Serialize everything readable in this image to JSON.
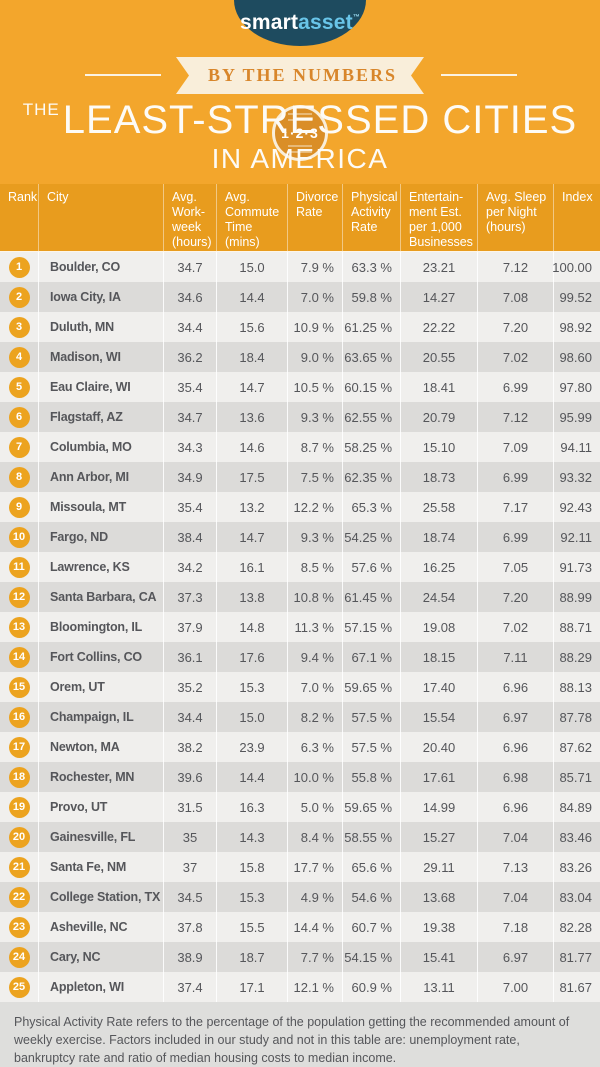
{
  "brand": {
    "logo_part1": "smart",
    "logo_part2": "asset",
    "trademark": "™"
  },
  "ribbon": {
    "left_text": "BY THE",
    "right_text": "NUMBERS",
    "badge_text": "1·2·3"
  },
  "title": {
    "prefix": "THE",
    "main": "LEAST-STRESSED CITIES",
    "sub": "IN AMERICA"
  },
  "colors": {
    "background_yellow": "#F3A62C",
    "table_header_orange": "#E89C1E",
    "rank_circle_orange": "#ECA31F",
    "logo_navy": "#1E4B5F",
    "logo_blue": "#69C5E9",
    "ribbon_cream": "#F9EEDA",
    "ribbon_text_orange": "#D8862B",
    "row_light": "#F0EFED",
    "row_dark": "#DCDBD9",
    "footer_gray": "#DEDEDC",
    "text_gray": "#55565A"
  },
  "table": {
    "display_columns": [
      "Rank",
      "City",
      "Avg.\nWork-\nweek\n(hours)",
      "Avg.\nCommute\nTime\n(mins)",
      "Divorce\nRate",
      "Physical\nActivity\nRate",
      "Entertain-\nment Est.\nper 1,000\nBusinesses",
      "Avg. Sleep\nper Night\n(hours)",
      "Index"
    ]
  },
  "chart_data": {
    "type": "table",
    "title": "The Least-Stressed Cities in America",
    "columns": [
      "Rank",
      "City",
      "Avg. Workweek (hours)",
      "Avg. Commute Time (mins)",
      "Divorce Rate",
      "Physical Activity Rate",
      "Entertainment Est. per 1,000 Businesses",
      "Avg. Sleep per Night (hours)",
      "Index"
    ],
    "rows": [
      [
        "1",
        "Boulder, CO",
        "34.7",
        "15.0",
        "7.9 %",
        "63.3 %",
        "23.21",
        "7.12",
        "100.00"
      ],
      [
        "2",
        "Iowa City, IA",
        "34.6",
        "14.4",
        "7.0 %",
        "59.8 %",
        "14.27",
        "7.08",
        "99.52"
      ],
      [
        "3",
        "Duluth, MN",
        "34.4",
        "15.6",
        "10.9 %",
        "61.25 %",
        "22.22",
        "7.20",
        "98.92"
      ],
      [
        "4",
        "Madison, WI",
        "36.2",
        "18.4",
        "9.0 %",
        "63.65 %",
        "20.55",
        "7.02",
        "98.60"
      ],
      [
        "5",
        "Eau Claire, WI",
        "35.4",
        "14.7",
        "10.5 %",
        "60.15 %",
        "18.41",
        "6.99",
        "97.80"
      ],
      [
        "6",
        "Flagstaff, AZ",
        "34.7",
        "13.6",
        "9.3 %",
        "62.55 %",
        "20.79",
        "7.12",
        "95.99"
      ],
      [
        "7",
        "Columbia, MO",
        "34.3",
        "14.6",
        "8.7 %",
        "58.25 %",
        "15.10",
        "7.09",
        "94.11"
      ],
      [
        "8",
        "Ann Arbor, MI",
        "34.9",
        "17.5",
        "7.5 %",
        "62.35 %",
        "18.73",
        "6.99",
        "93.32"
      ],
      [
        "9",
        "Missoula, MT",
        "35.4",
        "13.2",
        "12.2 %",
        "65.3 %",
        "25.58",
        "7.17",
        "92.43"
      ],
      [
        "10",
        "Fargo, ND",
        "38.4",
        "14.7",
        "9.3 %",
        "54.25 %",
        "18.74",
        "6.99",
        "92.11"
      ],
      [
        "11",
        "Lawrence, KS",
        "34.2",
        "16.1",
        "8.5 %",
        "57.6 %",
        "16.25",
        "7.05",
        "91.73"
      ],
      [
        "12",
        "Santa Barbara, CA",
        "37.3",
        "13.8",
        "10.8 %",
        "61.45 %",
        "24.54",
        "7.20",
        "88.99"
      ],
      [
        "13",
        "Bloomington, IL",
        "37.9",
        "14.8",
        "11.3 %",
        "57.15 %",
        "19.08",
        "7.02",
        "88.71"
      ],
      [
        "14",
        "Fort Collins, CO",
        "36.1",
        "17.6",
        "9.4 %",
        "67.1 %",
        "18.15",
        "7.11",
        "88.29"
      ],
      [
        "15",
        "Orem, UT",
        "35.2",
        "15.3",
        "7.0 %",
        "59.65 %",
        "17.40",
        "6.96",
        "88.13"
      ],
      [
        "16",
        "Champaign, IL",
        "34.4",
        "15.0",
        "8.2 %",
        "57.5 %",
        "15.54",
        "6.97",
        "87.78"
      ],
      [
        "17",
        "Newton, MA",
        "38.2",
        "23.9",
        "6.3 %",
        "57.5 %",
        "20.40",
        "6.96",
        "87.62"
      ],
      [
        "18",
        "Rochester, MN",
        "39.6",
        "14.4",
        "10.0 %",
        "55.8 %",
        "17.61",
        "6.98",
        "85.71"
      ],
      [
        "19",
        "Provo, UT",
        "31.5",
        "16.3",
        "5.0 %",
        "59.65 %",
        "14.99",
        "6.96",
        "84.89"
      ],
      [
        "20",
        "Gainesville, FL",
        "35",
        "14.3",
        "8.4 %",
        "58.55 %",
        "15.27",
        "7.04",
        "83.46"
      ],
      [
        "21",
        "Santa Fe, NM",
        "37",
        "15.8",
        "17.7 %",
        "65.6 %",
        "29.11",
        "7.13",
        "83.26"
      ],
      [
        "22",
        "College Station, TX",
        "34.5",
        "15.3",
        "4.9 %",
        "54.6 %",
        "13.68",
        "7.04",
        "83.04"
      ],
      [
        "23",
        "Asheville, NC",
        "37.8",
        "15.5",
        "14.4 %",
        "60.7 %",
        "19.38",
        "7.18",
        "82.28"
      ],
      [
        "24",
        "Cary, NC",
        "38.9",
        "18.7",
        "7.7 %",
        "54.15 %",
        "15.41",
        "6.97",
        "81.77"
      ],
      [
        "25",
        "Appleton, WI",
        "37.4",
        "17.1",
        "12.1 %",
        "60.9 %",
        "13.11",
        "7.00",
        "81.67"
      ]
    ]
  },
  "footer": {
    "note": "Physical Activity Rate refers to the percentage of the population getting the recommended amount of weekly exercise. Factors included in our study and not in this table are: unemployment rate, bankruptcy rate and ratio of median housing costs to median income."
  }
}
